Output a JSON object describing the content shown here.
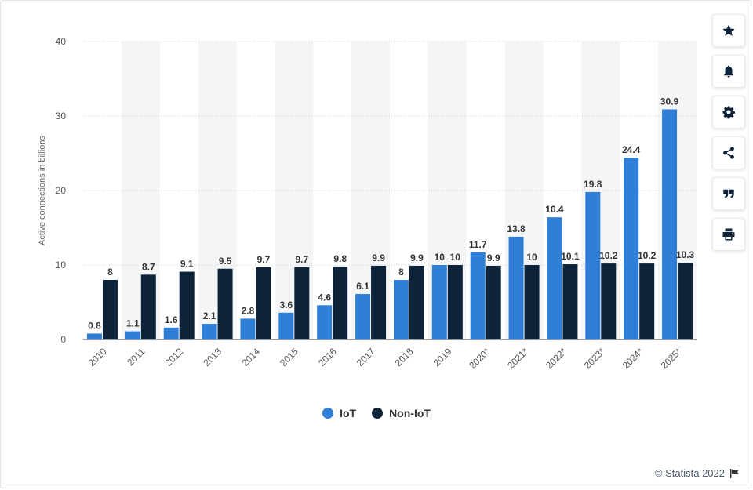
{
  "toolbar": {
    "items": [
      {
        "icon": "star-icon"
      },
      {
        "icon": "bell-icon"
      },
      {
        "icon": "gear-icon"
      },
      {
        "icon": "share-icon"
      },
      {
        "icon": "quote-icon"
      },
      {
        "icon": "print-icon"
      }
    ]
  },
  "credit": "© Statista 2022",
  "colors": {
    "iot": "#2f7ed8",
    "non_iot": "#0d233a",
    "band": "#f4f5f7",
    "grid": "#cccccc"
  },
  "chart_data": {
    "type": "bar",
    "categories": [
      "2010",
      "2011",
      "2012",
      "2013",
      "2014",
      "2015",
      "2016",
      "2017",
      "2018",
      "2019",
      "2020*",
      "2021*",
      "2022*",
      "2023*",
      "2024*",
      "2025*"
    ],
    "series": [
      {
        "name": "IoT",
        "values": [
          0.8,
          1.1,
          1.6,
          2.1,
          2.8,
          3.6,
          4.6,
          6.1,
          8,
          10,
          11.7,
          13.8,
          16.4,
          19.8,
          24.4,
          30.9
        ]
      },
      {
        "name": "Non-IoT",
        "values": [
          8,
          8.7,
          9.1,
          9.5,
          9.7,
          9.7,
          9.8,
          9.9,
          9.9,
          10,
          9.9,
          10,
          10.1,
          10.2,
          10.2,
          10.3
        ]
      }
    ],
    "ylabel": "Active connections in billions",
    "ylim": [
      0,
      40
    ],
    "yticks": [
      0,
      10,
      20,
      30,
      40
    ],
    "grid": true,
    "legend": "bottom-center"
  }
}
